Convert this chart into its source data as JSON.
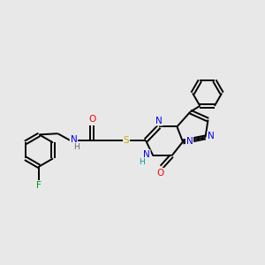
{
  "background_color": "#e8e8e8",
  "bond_color": "#000000",
  "atom_colors": {
    "N": "#0000ff",
    "O": "#ff0000",
    "S": "#ccaa00",
    "F": "#009900",
    "H_amide": "#666666",
    "H_ring": "#009999",
    "C": "#000000"
  },
  "figsize": [
    3.0,
    3.0
  ],
  "dpi": 100,
  "xlim": [
    0.2,
    10.2
  ],
  "ylim": [
    2.8,
    8.0
  ]
}
